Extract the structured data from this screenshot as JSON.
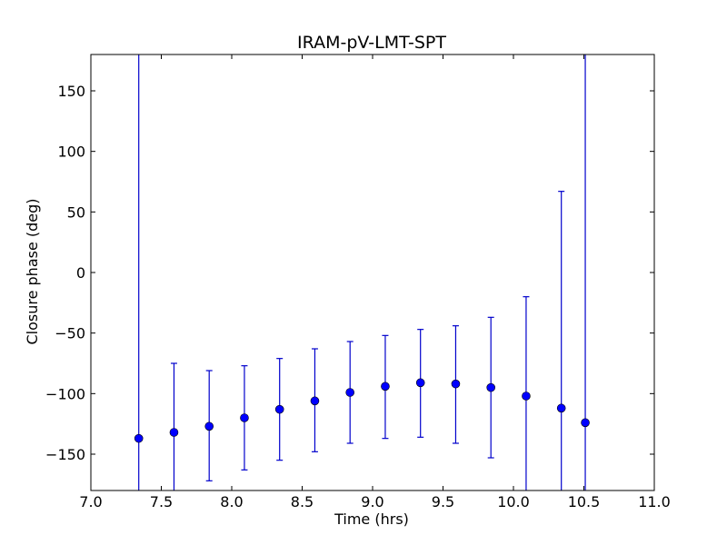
{
  "chart_data": {
    "type": "scatter",
    "title": "IRAM-pV-LMT-SPT",
    "xlabel": "Time (hrs)",
    "ylabel": "Closure phase (deg)",
    "xlim": [
      7.0,
      11.0
    ],
    "ylim": [
      -180,
      180
    ],
    "xticks": [
      "7.0",
      "7.5",
      "8.0",
      "8.5",
      "9.0",
      "9.5",
      "10.0",
      "10.5",
      "11.0"
    ],
    "yticks": [
      "−150",
      "−100",
      "−50",
      "0",
      "50",
      "100",
      "150"
    ],
    "grid": false,
    "marker_color": "#0000ff",
    "errorbar_color": "#0000cc",
    "points": [
      {
        "x": 7.34,
        "y": -137,
        "yerr_low": -180,
        "yerr_high": 180
      },
      {
        "x": 7.59,
        "y": -132,
        "yerr_low": -180,
        "yerr_high": -75
      },
      {
        "x": 7.84,
        "y": -127,
        "yerr_low": -172,
        "yerr_high": -81
      },
      {
        "x": 8.09,
        "y": -120,
        "yerr_low": -163,
        "yerr_high": -77
      },
      {
        "x": 8.34,
        "y": -113,
        "yerr_low": -155,
        "yerr_high": -71
      },
      {
        "x": 8.59,
        "y": -106,
        "yerr_low": -148,
        "yerr_high": -63
      },
      {
        "x": 8.84,
        "y": -99,
        "yerr_low": -141,
        "yerr_high": -57
      },
      {
        "x": 9.09,
        "y": -94,
        "yerr_low": -137,
        "yerr_high": -52
      },
      {
        "x": 9.34,
        "y": -91,
        "yerr_low": -136,
        "yerr_high": -47
      },
      {
        "x": 9.59,
        "y": -92,
        "yerr_low": -141,
        "yerr_high": -44
      },
      {
        "x": 9.84,
        "y": -95,
        "yerr_low": -153,
        "yerr_high": -37
      },
      {
        "x": 10.09,
        "y": -102,
        "yerr_low": -180,
        "yerr_high": -20
      },
      {
        "x": 10.34,
        "y": -112,
        "yerr_low": -180,
        "yerr_high": 67
      },
      {
        "x": 10.51,
        "y": -124,
        "yerr_low": -180,
        "yerr_high": 180
      }
    ]
  }
}
